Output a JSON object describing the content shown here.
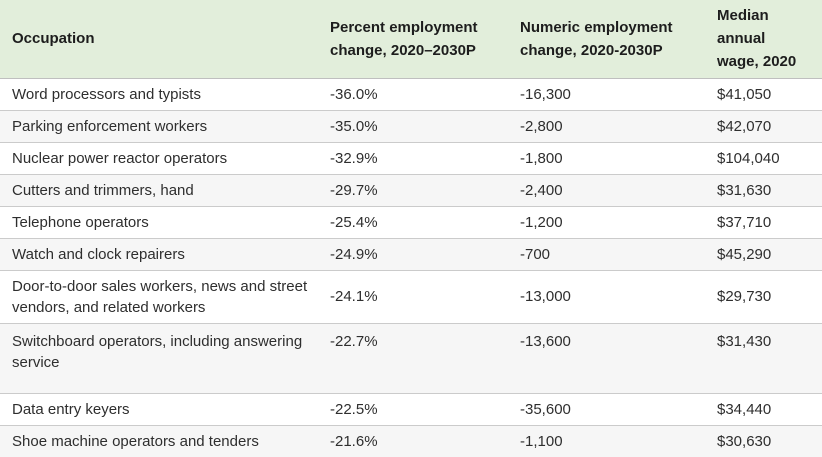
{
  "colors": {
    "header_bg": "#e2eedb",
    "stripe_bg": "#f6f6f6",
    "divider": "#cbcbcb",
    "text": "#2e2e2e"
  },
  "chart_data": {
    "type": "table",
    "columns": [
      "Occupation",
      "Percent employment change, 2020–2030P",
      "Numeric employment change, 2020-2030P",
      "Median annual wage, 2020"
    ],
    "rows": [
      {
        "occupation": "Word processors and typists",
        "percent_change": "-36.0%",
        "numeric_change": "-16,300",
        "median_wage": "$41,050"
      },
      {
        "occupation": "Parking enforcement workers",
        "percent_change": "-35.0%",
        "numeric_change": "-2,800",
        "median_wage": "$42,070"
      },
      {
        "occupation": "Nuclear power reactor operators",
        "percent_change": "-32.9%",
        "numeric_change": "-1,800",
        "median_wage": "$104,040"
      },
      {
        "occupation": "Cutters and trimmers, hand",
        "percent_change": "-29.7%",
        "numeric_change": "-2,400",
        "median_wage": "$31,630"
      },
      {
        "occupation": "Telephone operators",
        "percent_change": "-25.4%",
        "numeric_change": "-1,200",
        "median_wage": "$37,710"
      },
      {
        "occupation": "Watch and clock repairers",
        "percent_change": "-24.9%",
        "numeric_change": "-700",
        "median_wage": "$45,290"
      },
      {
        "occupation": "Door-to-door sales workers, news and street vendors, and related workers",
        "percent_change": "-24.1%",
        "numeric_change": "-13,000",
        "median_wage": "$29,730"
      },
      {
        "occupation": "Switchboard operators, including answering service",
        "percent_change": "-22.7%",
        "numeric_change": "-13,600",
        "median_wage": "$31,430"
      },
      {
        "occupation": "Data entry keyers",
        "percent_change": "-22.5%",
        "numeric_change": "-35,600",
        "median_wage": "$34,440"
      },
      {
        "occupation": "Shoe machine operators and tenders",
        "percent_change": "-21.6%",
        "numeric_change": "-1,100",
        "median_wage": "$30,630"
      }
    ]
  }
}
